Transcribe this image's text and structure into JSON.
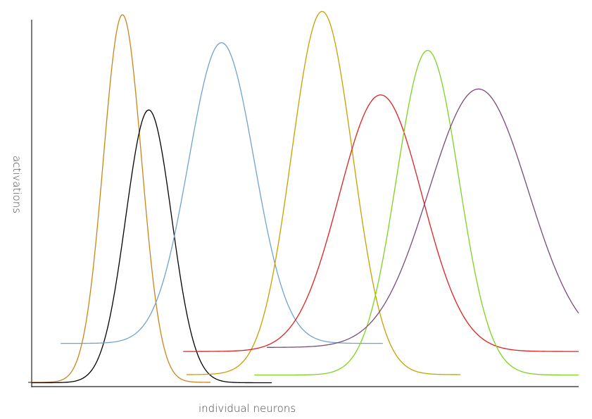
{
  "chart_data": {
    "type": "line",
    "title": "",
    "xlabel": "individual neurons",
    "ylabel": "activations",
    "xlim": [
      0,
      100
    ],
    "ylim": [
      0,
      100
    ],
    "grid": false,
    "legend": "none",
    "series": [
      {
        "color": "#c8861a",
        "mu": 16.6,
        "sigma": 3.5,
        "base": 0.2,
        "amp": 100.0,
        "xrange": [
          0,
          32.7
        ]
      },
      {
        "color": "#000000",
        "mu": 21.4,
        "sigma": 4.2,
        "base": 0.1,
        "amp": 74.2,
        "xrange": [
          0,
          43.9
        ]
      },
      {
        "color": "#6fa3d1",
        "mu": 34.7,
        "sigma": 6.0,
        "base": 10.8,
        "amp": 81.8,
        "xrange": [
          5.3,
          64.2
        ]
      },
      {
        "color": "#c9a000",
        "mu": 53.1,
        "sigma": 5.6,
        "base": 2.3,
        "amp": 98.8,
        "xrange": [
          28.3,
          78.4
        ]
      },
      {
        "color": "#e02020",
        "mu": 63.8,
        "sigma": 7.6,
        "base": 8.6,
        "amp": 69.8,
        "xrange": [
          27.7,
          100
        ]
      },
      {
        "color": "#7ed321",
        "mu": 72.4,
        "sigma": 5.7,
        "base": 2.2,
        "amp": 88.3,
        "xrange": [
          40.7,
          100
        ]
      },
      {
        "color": "#7a4a7a",
        "mu": 81.7,
        "sigma": 9.1,
        "base": 9.7,
        "amp": 70.3,
        "xrange": [
          43.0,
          100
        ]
      }
    ]
  }
}
